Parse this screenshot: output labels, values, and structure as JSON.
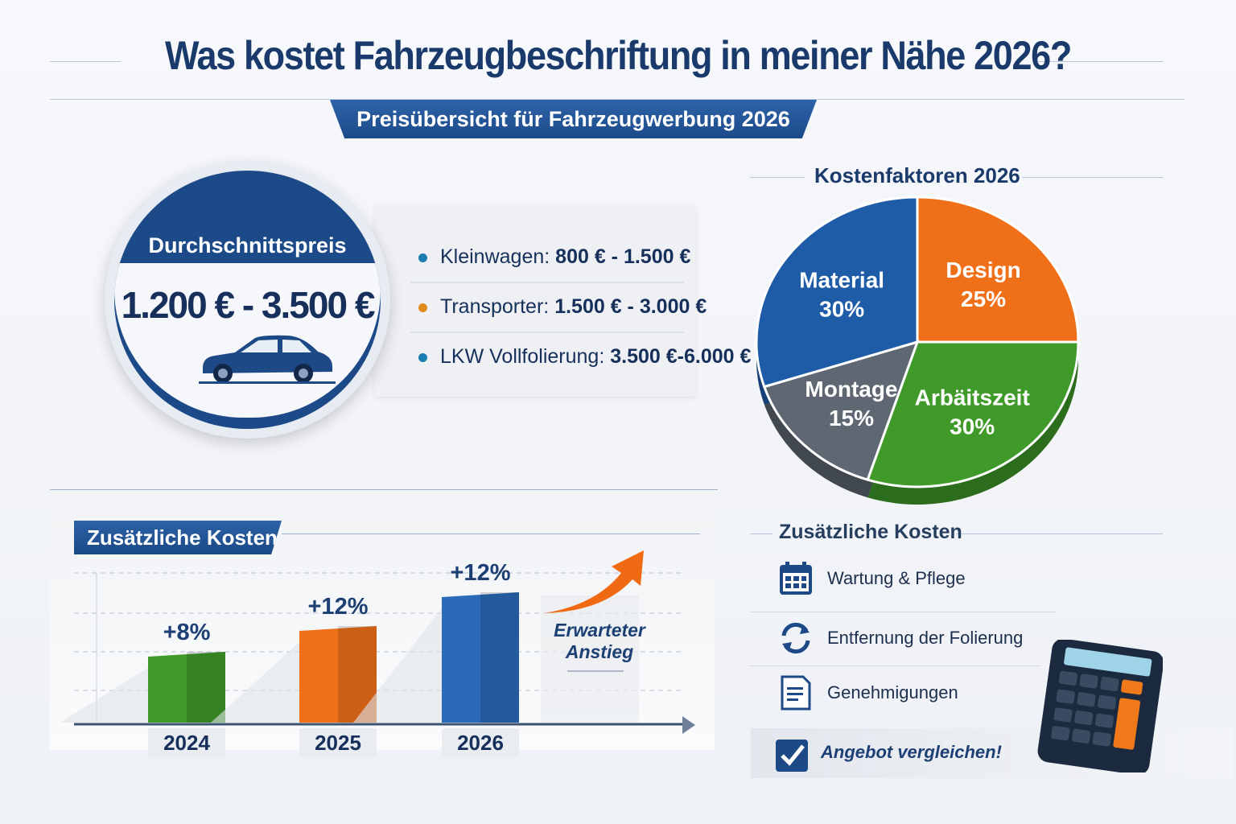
{
  "header": {
    "title": "Was kostet Fahrzeugbeschriftung in meiner Nähe 2026?",
    "subtitle": "Preisübersicht für Fahrzeugwerbung 2026"
  },
  "average": {
    "label": "Durchschnittspreis",
    "value": "1.200 € - 3.500 €",
    "icon": "car-icon"
  },
  "prices": [
    {
      "label": "Kleinwagen:",
      "value": "800 € - 1.500 €",
      "color": "#1a7fb0"
    },
    {
      "label": "Transporter:",
      "value": "1.500 € - 3.000 €",
      "color": "#e08a1e"
    },
    {
      "label": "LKW Vollfolierung:",
      "value": "3.500 €-6.000 €",
      "color": "#1a7fb0"
    }
  ],
  "chart_data": [
    {
      "type": "pie",
      "title": "Kostenfaktoren 2026",
      "unit": "%",
      "slices": [
        {
          "label": "Design",
          "value": 25,
          "display": "25%",
          "color": "#f0701a"
        },
        {
          "label": "Arbäitszeit",
          "value": 30,
          "display": "30%",
          "color": "#3f9a2a"
        },
        {
          "label": "Montage",
          "value": 15,
          "display": "15%",
          "color": "#5f6772"
        },
        {
          "label": "Material",
          "value": 30,
          "display": "30%",
          "color": "#1f5ca8"
        }
      ]
    },
    {
      "type": "bar",
      "title": "Zusätzliche Kosten",
      "categories": [
        "2024",
        "2025",
        "2026"
      ],
      "values": [
        8,
        12,
        12
      ],
      "labels": [
        "+8%",
        "+12%",
        "+12%"
      ],
      "colors": [
        "#3f9a2a",
        "#f0701a",
        "#2a6ab8"
      ],
      "grid": true,
      "annotation": "Erwarteter Anstieg"
    }
  ],
  "extra_costs": {
    "title": "Zusätzliche Kosten",
    "items": [
      {
        "label": "Wartung & Pflege",
        "icon": "calendar-icon"
      },
      {
        "label": "Entfernung der Folierung",
        "icon": "refresh-icon"
      },
      {
        "label": "Genehmigungen",
        "icon": "document-icon"
      }
    ],
    "cta": "Angebot vergleichen!",
    "cta_icon": "checkbox-icon",
    "decor_icon": "calculator-icon"
  }
}
